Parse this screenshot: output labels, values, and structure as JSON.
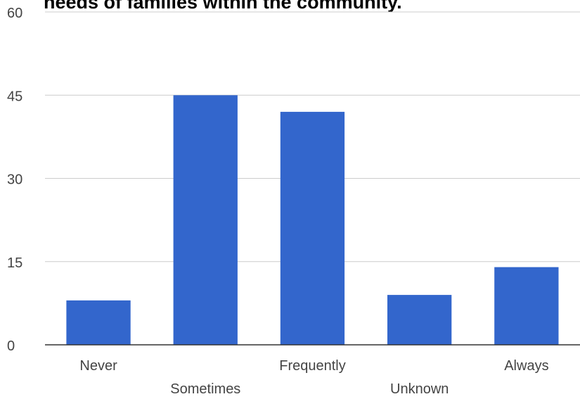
{
  "chart_data": {
    "type": "bar",
    "title": "needs of families within the community.",
    "categories": [
      "Never",
      "Sometimes",
      "Frequently",
      "Unknown",
      "Always"
    ],
    "values": [
      8,
      45,
      42,
      9,
      14
    ],
    "ylim": [
      0,
      60
    ],
    "yticks": [
      0,
      15,
      30,
      45,
      60
    ],
    "xlabel": "",
    "ylabel": "",
    "grid": true,
    "legend": "none",
    "bar_color": "#3366cc",
    "grid_color": "#cccccc",
    "axis_color": "#333333"
  }
}
